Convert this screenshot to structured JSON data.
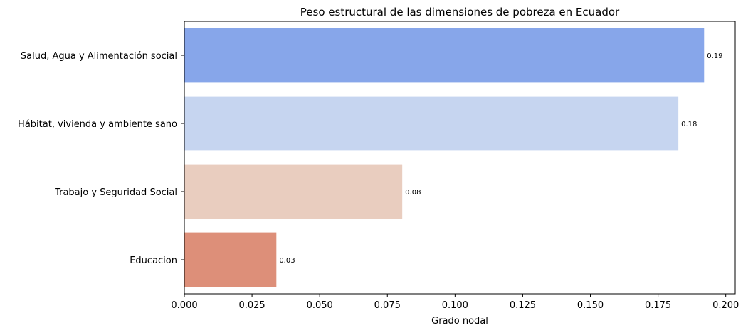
{
  "chart_data": {
    "type": "bar",
    "orientation": "horizontal",
    "title": "Peso estructural de las dimensiones de pobreza en Ecuador",
    "xlabel": "Grado nodal",
    "ylabel": "",
    "categories": [
      "Salud, Agua y Alimentación social",
      "Hábitat, vivienda y ambiente sano",
      "Trabajo y Seguridad Social",
      "Educacion"
    ],
    "values": [
      0.192,
      0.1825,
      0.0805,
      0.034
    ],
    "data_labels": [
      "0.19",
      "0.18",
      "0.08",
      "0.03"
    ],
    "colors": [
      "#87a6ea",
      "#c6d5f0",
      "#e9cdbf",
      "#dd8f79"
    ],
    "xlim": [
      0,
      0.2035
    ],
    "xticks": [
      0.0,
      0.025,
      0.05,
      0.075,
      0.1,
      0.125,
      0.15,
      0.175,
      0.2
    ],
    "xtick_labels": [
      "0.000",
      "0.025",
      "0.050",
      "0.075",
      "0.100",
      "0.125",
      "0.150",
      "0.175",
      "0.200"
    ],
    "grid": false,
    "legend": "none"
  }
}
